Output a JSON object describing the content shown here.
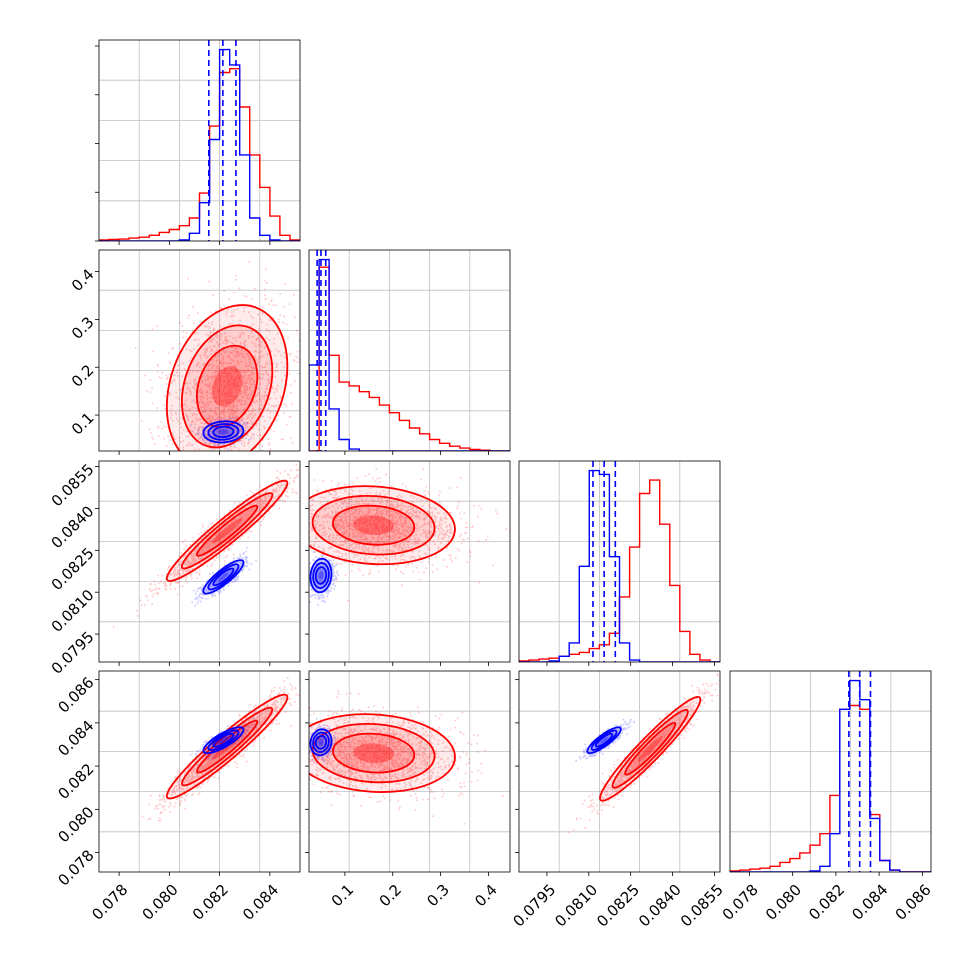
{
  "colors": {
    "series_a": "#0000ff",
    "series_b": "#ff0000",
    "grid": "#c0c0c0",
    "frame": "#000000"
  },
  "chart_data": {
    "type": "corner",
    "grid": true,
    "series": [
      {
        "color": "#0000ff"
      },
      {
        "color": "#ff0000"
      }
    ],
    "parameters": [
      {
        "range": [
          0.0772,
          0.0852
        ],
        "bottom_ticks": [
          "0.078",
          "0.080",
          "0.082",
          "0.084"
        ],
        "left_ticks": [],
        "quantile_lines": [
          0.08157,
          0.08213,
          0.08265
        ],
        "hist_edges": [
          0.0772,
          0.0776,
          0.078,
          0.0784,
          0.0788,
          0.0792,
          0.0796,
          0.08,
          0.0804,
          0.0808,
          0.0812,
          0.0816,
          0.082,
          0.0824,
          0.0828,
          0.0832,
          0.0836,
          0.084,
          0.0844,
          0.0848,
          0.0852
        ],
        "hist_series_a": [
          0,
          0,
          0,
          0,
          0,
          0,
          0,
          0,
          0.005,
          0.04,
          0.2,
          0.53,
          1.0,
          0.92,
          0.45,
          0.12,
          0.03,
          0.005,
          0,
          0
        ],
        "hist_series_b": [
          0.005,
          0.008,
          0.01,
          0.015,
          0.02,
          0.03,
          0.045,
          0.06,
          0.08,
          0.12,
          0.25,
          0.6,
          0.88,
          0.9,
          0.7,
          0.45,
          0.28,
          0.13,
          0.03,
          0.005
        ],
        "hist_max": 1.0
      },
      {
        "range": [
          0.025,
          0.445
        ],
        "bottom_ticks": [
          "0.1",
          "0.2",
          "0.3",
          "0.4"
        ],
        "left_ticks": [
          "0.1",
          "0.2",
          "0.3",
          "0.4"
        ],
        "quantile_lines": [
          0.042,
          0.05,
          0.06
        ],
        "hist_edges": [
          0.025,
          0.046,
          0.067,
          0.088,
          0.109,
          0.13,
          0.151,
          0.172,
          0.193,
          0.214,
          0.235,
          0.256,
          0.277,
          0.298,
          0.319,
          0.34,
          0.361,
          0.382,
          0.403,
          0.424,
          0.445
        ],
        "hist_series_a": [
          0.45,
          1.0,
          0.22,
          0.06,
          0.01,
          0,
          0,
          0,
          0,
          0,
          0,
          0,
          0,
          0,
          0,
          0,
          0,
          0,
          0,
          0
        ],
        "hist_series_b": [
          0,
          0.96,
          0.5,
          0.36,
          0.34,
          0.31,
          0.28,
          0.24,
          0.2,
          0.16,
          0.12,
          0.09,
          0.06,
          0.04,
          0.025,
          0.015,
          0.008,
          0.004,
          0,
          0
        ],
        "hist_max": 1.0
      },
      {
        "range": [
          0.0785,
          0.0857
        ],
        "bottom_ticks": [
          "0.0795",
          "0.0810",
          "0.0825",
          "0.0840",
          "0.0855"
        ],
        "left_ticks": [
          "0.0795",
          "0.0810",
          "0.0825",
          "0.0840",
          "0.0855"
        ],
        "quantile_lines": [
          0.08115,
          0.08155,
          0.08195
        ],
        "hist_edges": [
          0.0785,
          0.07886,
          0.07922,
          0.07958,
          0.07994,
          0.0803,
          0.08066,
          0.08102,
          0.08138,
          0.08174,
          0.0821,
          0.08246,
          0.08282,
          0.08318,
          0.08354,
          0.0839,
          0.08426,
          0.08462,
          0.08498,
          0.08534,
          0.0857
        ],
        "hist_series_a": [
          0,
          0,
          0,
          0.005,
          0.03,
          0.1,
          0.5,
          1.0,
          0.98,
          0.55,
          0.1,
          0.01,
          0,
          0,
          0,
          0,
          0,
          0,
          0,
          0
        ],
        "hist_series_b": [
          0.005,
          0.01,
          0.015,
          0.02,
          0.03,
          0.04,
          0.05,
          0.07,
          0.09,
          0.15,
          0.34,
          0.6,
          0.88,
          0.95,
          0.72,
          0.4,
          0.16,
          0.04,
          0.01,
          0
        ],
        "hist_max": 1.0
      },
      {
        "range": [
          0.0771,
          0.0864
        ],
        "bottom_ticks": [
          "0.078",
          "0.080",
          "0.082",
          "0.084",
          "0.086"
        ],
        "left_ticks": [
          "0.078",
          "0.080",
          "0.082",
          "0.084",
          "0.086"
        ],
        "quantile_lines": [
          0.0826,
          0.0831,
          0.0836
        ],
        "hist_edges": [
          0.0771,
          0.07756,
          0.07802,
          0.07849,
          0.07895,
          0.07941,
          0.07987,
          0.08033,
          0.0808,
          0.08126,
          0.08172,
          0.08218,
          0.08264,
          0.08311,
          0.08357,
          0.08403,
          0.08449,
          0.08495,
          0.08541,
          0.08588,
          0.0864
        ],
        "hist_series_a": [
          0,
          0,
          0,
          0,
          0,
          0,
          0,
          0,
          0.005,
          0.03,
          0.2,
          0.85,
          1.0,
          0.9,
          0.28,
          0.06,
          0.01,
          0,
          0,
          0
        ],
        "hist_series_b": [
          0.005,
          0.01,
          0.015,
          0.02,
          0.03,
          0.05,
          0.07,
          0.1,
          0.14,
          0.2,
          0.4,
          0.85,
          0.87,
          0.85,
          0.3,
          0.06,
          0.01,
          0,
          0,
          0
        ],
        "hist_max": 1.0
      }
    ],
    "pairs": [
      {
        "row": 1,
        "col": 0,
        "series_a": {
          "center": [
            0.08215,
            0.065
          ],
          "sd": [
            0.0004,
            0.011
          ],
          "corr": 0.1
        },
        "series_b": {
          "center": [
            0.0823,
            0.16
          ],
          "sd": [
            0.0012,
            0.085
          ],
          "corr": 0.25
        }
      },
      {
        "row": 2,
        "col": 0,
        "series_a": {
          "center": [
            0.08215,
            0.08155
          ],
          "sd": [
            0.0004,
            0.0003
          ],
          "corr": 0.85
        },
        "series_b": {
          "center": [
            0.0823,
            0.0832
          ],
          "sd": [
            0.0012,
            0.0009
          ],
          "corr": 0.95
        }
      },
      {
        "row": 2,
        "col": 1,
        "series_a": {
          "center": [
            0.05,
            0.0816
          ],
          "sd": [
            0.011,
            0.0003
          ],
          "corr": 0.1
        },
        "series_b": {
          "center": [
            0.16,
            0.0834
          ],
          "sd": [
            0.085,
            0.0007
          ],
          "corr": -0.1
        }
      },
      {
        "row": 3,
        "col": 0,
        "series_a": {
          "center": [
            0.08215,
            0.0832
          ],
          "sd": [
            0.0004,
            0.0003
          ],
          "corr": 0.8
        },
        "series_b": {
          "center": [
            0.0823,
            0.0829
          ],
          "sd": [
            0.0012,
            0.0012
          ],
          "corr": 0.95
        }
      },
      {
        "row": 3,
        "col": 1,
        "series_a": {
          "center": [
            0.05,
            0.0831
          ],
          "sd": [
            0.011,
            0.0003
          ],
          "corr": 0.1
        },
        "series_b": {
          "center": [
            0.16,
            0.0826
          ],
          "sd": [
            0.085,
            0.0009
          ],
          "corr": -0.1
        }
      },
      {
        "row": 3,
        "col": 2,
        "series_a": {
          "center": [
            0.08155,
            0.0832
          ],
          "sd": [
            0.0003,
            0.0003
          ],
          "corr": 0.85
        },
        "series_b": {
          "center": [
            0.0832,
            0.0828
          ],
          "sd": [
            0.0009,
            0.0012
          ],
          "corr": 0.95
        }
      }
    ]
  }
}
